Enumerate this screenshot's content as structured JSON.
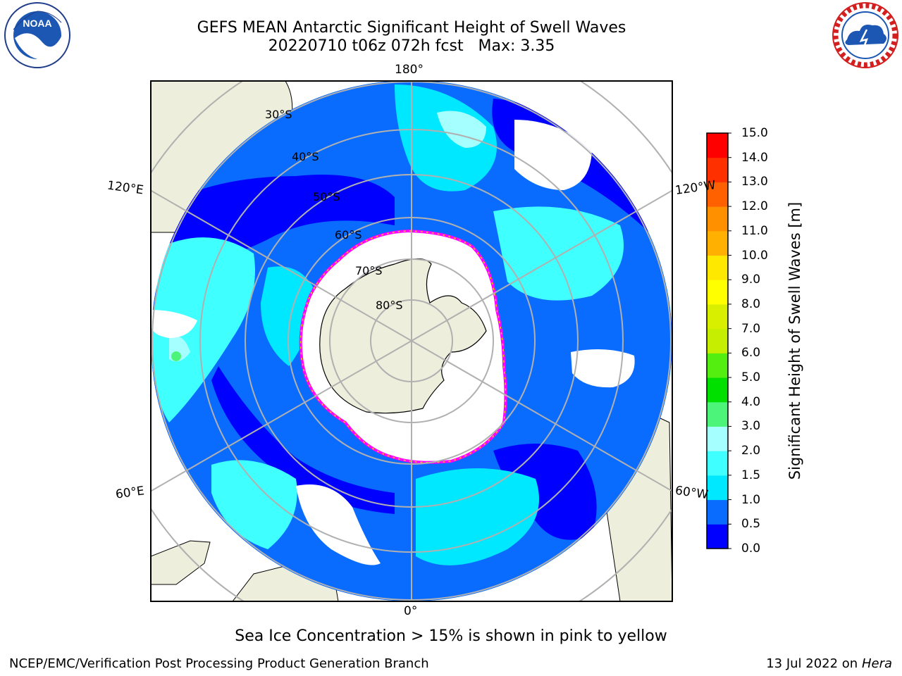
{
  "title": {
    "line1": "GEFS MEAN Antarctic Significant Height of Swell Waves",
    "line2": "20220710 t06z 072h fcst   Max: 3.35"
  },
  "map": {
    "projection": "south polar stereographic",
    "longitude_labels": [
      "180°",
      "120°E",
      "120°W",
      "60°E",
      "60°W",
      "0°"
    ],
    "latitude_labels": [
      "30°S",
      "40°S",
      "50°S",
      "60°S",
      "70°S",
      "80°S"
    ],
    "colors": {
      "land": "#eeeedc",
      "ice": "#ffffff",
      "ice_edge": [
        "#ff00ff",
        "#ff66cc",
        "#ffcc00"
      ],
      "graticule": "#b0b0b0"
    }
  },
  "colorbar": {
    "label": "Significant Height of Swell Waves [m]",
    "ticks": [
      "0.0",
      "0.5",
      "1.0",
      "1.5",
      "2.0",
      "3.0",
      "4.0",
      "5.0",
      "6.0",
      "7.0",
      "8.0",
      "9.0",
      "10.0",
      "11.0",
      "12.0",
      "13.0",
      "14.0",
      "15.0"
    ],
    "colors": [
      "#0000ff",
      "#0a6cff",
      "#00e8ff",
      "#40ffff",
      "#a6ffff",
      "#4cf57a",
      "#00e000",
      "#55ee11",
      "#c6ee00",
      "#d8f000",
      "#ffff00",
      "#ffe800",
      "#ffb000",
      "#ff9000",
      "#ff6000",
      "#ff3000",
      "#ff0000"
    ]
  },
  "note": "Sea Ice Concentration > 15% is shown in pink to yellow",
  "footer": {
    "left": "NCEP/EMC/Verification Post Processing Product Generation Branch",
    "right_date": "13 Jul 2022 on",
    "right_host": "Hera"
  },
  "logos": {
    "noaa": "NOAA",
    "nws": "NATIONAL WEATHER SERVICE"
  }
}
